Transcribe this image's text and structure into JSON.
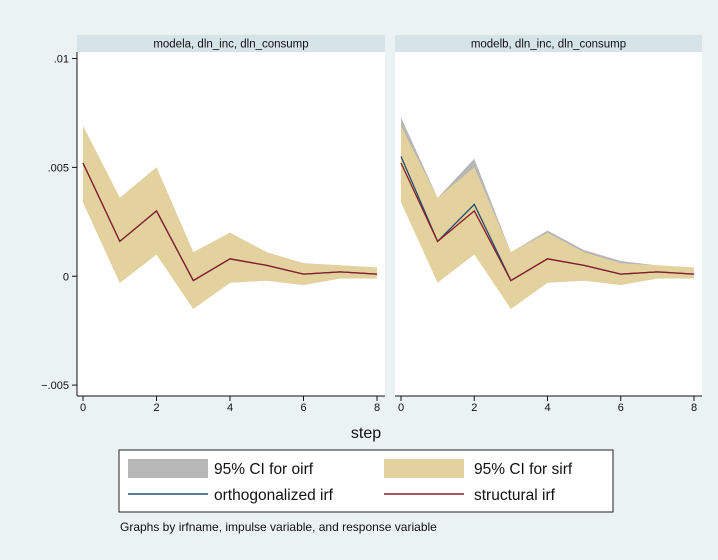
{
  "chart_data": {
    "type": "line",
    "xlabel": "step",
    "ylim": [
      -0.0055,
      0.0103
    ],
    "xlim": [
      0,
      8
    ],
    "y_ticks": [
      {
        "value": 0.01,
        "label": ".01"
      },
      {
        "value": 0.005,
        "label": ".005"
      },
      {
        "value": 0,
        "label": "0"
      },
      {
        "value": -0.005,
        "label": "-.005"
      }
    ],
    "x_ticks": [
      0,
      2,
      4,
      6,
      8
    ],
    "colors": {
      "ci_oirf": "#b7b7b7",
      "ci_sirf": "#e3d19e",
      "oirf": "#1f4e72",
      "sirf": "#8c1c2c",
      "panel_header": "#d6e3e8",
      "panel_bg": "#ffffff"
    },
    "panels": [
      {
        "title": "modela, dln_inc, dln_consump",
        "x": [
          0,
          1,
          2,
          3,
          4,
          5,
          6,
          7,
          8
        ],
        "series": [
          {
            "key": "ci_oirf",
            "kind": "band",
            "lower": [
              0.0034,
              -0.0003,
              0.001,
              -0.0015,
              -0.0003,
              -0.0002,
              -0.0004,
              -0.0001,
              -0.0001
            ],
            "upper": [
              0.0069,
              0.0036,
              0.005,
              0.0011,
              0.002,
              0.0011,
              0.0006,
              0.0005,
              0.0004
            ]
          },
          {
            "key": "ci_sirf",
            "kind": "band",
            "lower": [
              0.0034,
              -0.0003,
              0.001,
              -0.0015,
              -0.0003,
              -0.0002,
              -0.0004,
              -0.0001,
              -0.0001
            ],
            "upper": [
              0.0069,
              0.0036,
              0.005,
              0.0011,
              0.002,
              0.0011,
              0.0006,
              0.0005,
              0.0004
            ]
          },
          {
            "key": "oirf",
            "kind": "line",
            "values": [
              0.0052,
              0.0016,
              0.003,
              -0.0002,
              0.0008,
              0.0005,
              0.0001,
              0.0002,
              0.0001
            ]
          },
          {
            "key": "sirf",
            "kind": "line",
            "values": [
              0.0052,
              0.0016,
              0.003,
              -0.0002,
              0.0008,
              0.0005,
              0.0001,
              0.0002,
              0.0001
            ]
          }
        ]
      },
      {
        "title": "modelb, dln_inc, dln_consump",
        "x": [
          0,
          1,
          2,
          3,
          4,
          5,
          6,
          7,
          8
        ],
        "series": [
          {
            "key": "ci_oirf",
            "kind": "band",
            "lower": [
              0.0036,
              -0.0003,
              0.0012,
              -0.0015,
              -0.0003,
              -0.0002,
              -0.0004,
              -0.0001,
              -0.0001
            ],
            "upper": [
              0.0073,
              0.0036,
              0.0054,
              0.0011,
              0.0021,
              0.0012,
              0.0007,
              0.0005,
              0.0004
            ]
          },
          {
            "key": "ci_sirf",
            "kind": "band",
            "lower": [
              0.0034,
              -0.0003,
              0.001,
              -0.0015,
              -0.0003,
              -0.0002,
              -0.0004,
              -0.0001,
              -0.0001
            ],
            "upper": [
              0.0069,
              0.0036,
              0.005,
              0.0011,
              0.002,
              0.0011,
              0.0006,
              0.0005,
              0.0004
            ]
          },
          {
            "key": "oirf",
            "kind": "line",
            "values": [
              0.0055,
              0.0016,
              0.0033,
              -0.0002,
              0.0008,
              0.0005,
              0.0001,
              0.0002,
              0.0001
            ]
          },
          {
            "key": "sirf",
            "kind": "line",
            "values": [
              0.0052,
              0.0016,
              0.003,
              -0.0002,
              0.0008,
              0.0005,
              0.0001,
              0.0002,
              0.0001
            ]
          }
        ]
      }
    ],
    "legend": {
      "placement": "bottom",
      "items": [
        {
          "key": "ci_oirf",
          "kind": "band",
          "label": "95% CI for oirf"
        },
        {
          "key": "ci_sirf",
          "kind": "band",
          "label": "95% CI for sirf"
        },
        {
          "key": "oirf",
          "kind": "line",
          "label": "orthogonalized irf"
        },
        {
          "key": "sirf",
          "kind": "line",
          "label": "structural irf"
        }
      ]
    },
    "note": "Graphs by irfname, impulse variable, and response variable"
  }
}
